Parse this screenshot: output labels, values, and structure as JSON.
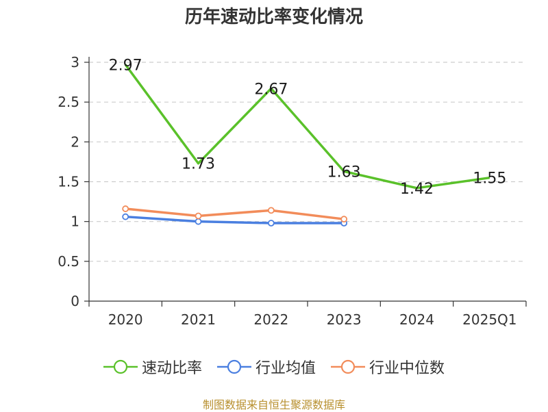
{
  "chart_data": {
    "type": "line",
    "title": "历年速动比率变化情况",
    "categories": [
      "2020",
      "2021",
      "2022",
      "2023",
      "2024",
      "2025Q1"
    ],
    "ylim": [
      0,
      3
    ],
    "yticks": [
      "0",
      "0.5",
      "1",
      "1.5",
      "2",
      "2.5",
      "3"
    ],
    "grid": true,
    "legend_position": "bottom",
    "series": [
      {
        "name": "速动比率",
        "color": "#5ac12a",
        "values": [
          2.97,
          1.73,
          2.67,
          1.63,
          1.42,
          1.55
        ],
        "labels": [
          "2.97",
          "1.73",
          "2.67",
          "1.63",
          "1.42",
          "1.55"
        ]
      },
      {
        "name": "行业均值",
        "color": "#4a7fe0",
        "values": [
          1.06,
          1.0,
          0.98,
          0.98,
          null,
          null
        ]
      },
      {
        "name": "行业中位数",
        "color": "#f28c5a",
        "values": [
          1.16,
          1.07,
          1.14,
          1.03,
          null,
          null
        ]
      }
    ]
  },
  "footer": {
    "credit": "制图数据来自恒生聚源数据库"
  }
}
